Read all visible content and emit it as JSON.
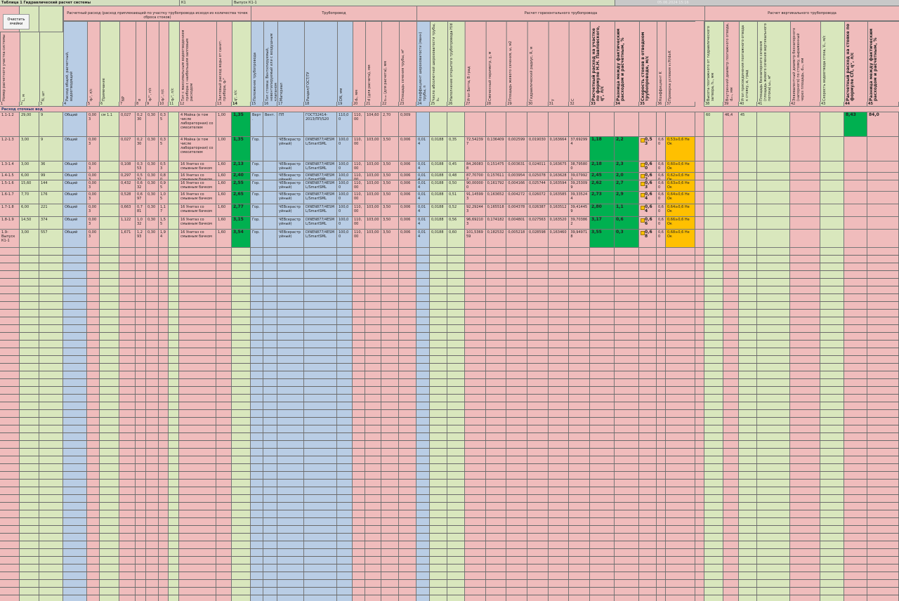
{
  "header": {
    "title": "Таблица 1 Гидравлический расчет системы",
    "system": "К1",
    "outlet": "Выпуск К1-1",
    "date": "05.06.2024 15:16"
  },
  "button": "Очистить ячейки",
  "groups": [
    "Расчетный расход (расход приплекающий по участку трубопровода исходя из количества точек сброса стоков)",
    "Трубопровод",
    "Расчет горизонтального трубопровода",
    "Расчет вертикального трубопровода"
  ],
  "section": "Расход сточных вод",
  "table": {
    "columns": [
      {
        "num": 1,
        "header": "Номер расчетного участка системы"
      },
      {
        "num": 2,
        "header": "L, м"
      },
      {
        "num": 3,
        "header": "N, шт"
      },
      {
        "num": 4,
        "header": "Расход общий, расчетный, водоотводящий"
      },
      {
        "num": 5,
        "header": "q₀ˢ, л/с"
      },
      {
        "num": 6,
        "header": "Примечание"
      },
      {
        "num": 7,
        "header": "NP"
      },
      {
        "num": 8,
        "header": "α"
      },
      {
        "num": 9,
        "header": "q₀ʰʳ, л/с"
      },
      {
        "num": 10,
        "header": "qₕʳ, л/с"
      },
      {
        "num": 11,
        "header": "q₀ˢˡ, л/с"
      },
      {
        "num": 12,
        "header": "Тип с максимальным водоотведением прибора с наибольшим залповым расходом"
      },
      {
        "num": 13,
        "header": "Залповый расход воды от санит. прибора, q₀ˢˡ"
      },
      {
        "num": 14,
        "header": "qˢ, л/с"
      },
      {
        "num": 15,
        "header": "Положение трубопровода"
      },
      {
        "num": 16,
        "header": "Тип стояка: Вентилируемый, невентилируемый или с воздушным клапаном"
      },
      {
        "num": 17,
        "header": "Материал"
      },
      {
        "num": 18,
        "header": "Раздел/ГОСТ/ТУ"
      },
      {
        "num": 19,
        "header": "DN, мм"
      },
      {
        "num": 20,
        "header": "dₙ, мм"
      },
      {
        "num": 21,
        "header": "d (для расчета), мм"
      },
      {
        "num": 22,
        "header": "sₘᵢₙ (для расчета), мм"
      },
      {
        "num": 23,
        "header": "Площадь сечения трубы, м²"
      },
      {
        "num": 24,
        "header": "Коэффициент шероховатости (манн) трубы, n"
      },
      {
        "num": 25,
        "header": "Число абсолютной шероховатости трубы, kₑ"
      },
      {
        "num": 26,
        "header": "Наполнение открытого трубопровода H/d"
      },
      {
        "num": 27,
        "header": "Угол Бетта, В град"
      },
      {
        "num": 28,
        "header": "Смоченный периметр, χ, м"
      },
      {
        "num": 29,
        "header": "Площадь живого сечения, ω, м2"
      },
      {
        "num": 30,
        "header": "Гидравлический радиус, R, м"
      },
      {
        "num": 31,
        "header": "y"
      },
      {
        "num": 32,
        "header": "C"
      },
      {
        "num": 33,
        "header": "Расчетный расход на участке по формуле Н.Н. Павловского, q⁰, л/с"
      },
      {
        "num": 34,
        "header": "Разница между фактическим расходом и расчетным, %"
      },
      {
        "num": 35,
        "header": "Скорость стоков в отводном трубопроводе, м/с"
      },
      {
        "num": 36,
        "header": "Коэффициент K"
      },
      {
        "num": 37,
        "header": "Проверка условия v√H/d≥K"
      },
      {
        "num": 38,
        "header": "Высота поэтажного от гидравлического затвора, hₓ, мм"
      },
      {
        "num": 39,
        "header": "Внутренний диаметр поэтажного отвода, dₒₜᵥ, мм"
      },
      {
        "num": 40,
        "header": "Угол присоединения поэтажного отвода к стояку, α, град"
      },
      {
        "num": 41,
        "header": "Площадь безнапорного сечения (площадь живого сечения вертикального потока) ωₒ, м²"
      },
      {
        "num": 42,
        "header": "Эквивалентный диаметр безнапорного (напорного) по стояку, выраженный через площадь, dₑₙ, мм"
      },
      {
        "num": 43,
        "header": "Скорость водоотвода стока, Vₒ, м/с"
      },
      {
        "num": 44,
        "header": "Расчетный расход на стояке по формуле СП, qᵛ, л/с"
      },
      {
        "num": 45,
        "header": "Разница между фактическим расходом и расчетным, %"
      }
    ],
    "rows": [
      [
        "1.1-1.2",
        "29,00",
        "9",
        "Общий",
        "0,003",
        "см 1.1",
        "0,027",
        "0,230",
        "0,30",
        "0,35",
        null,
        "4 Мойка (в том числе лабораторная) со смесителем",
        "1,00",
        "1,35",
        "Верт.",
        "Вент.",
        "ПП",
        "ГОСТ32414-2013/ПП/S20",
        "110,00",
        "110,00",
        "104,60",
        "2,70",
        "0,009",
        null,
        null,
        null,
        null,
        null,
        null,
        null,
        null,
        null,
        null,
        null,
        null,
        null,
        null,
        "60",
        "46,4",
        "45",
        null,
        null,
        null,
        "8,43",
        "84,0"
      ],
      [
        "1.2-1.3",
        "3,00",
        "9",
        "Общий",
        "0,003",
        null,
        "0,027",
        "0,230",
        "0,30",
        "0,35",
        null,
        "4 Мойка (в том числе лабораторная) со смесителем",
        "1,00",
        "1,35",
        "Гор.",
        null,
        "ЧЕВсераструйный)",
        "DINEN877/4ESML/SmartSML",
        "100,00",
        "110,00",
        "103,00",
        "3,50",
        "0,006",
        "0,014",
        "0,0188",
        "0,35",
        "72,542397",
        "0,136409",
        "0,002599",
        "0,019030",
        "0,163664",
        "37,692994",
        "1,18",
        "2,2",
        "0,53",
        "0,60",
        "0,53≥0,6 Не Ок",
        null,
        null,
        null,
        null,
        null,
        null,
        null,
        null
      ],
      [
        "1.3-1.4",
        "3,00",
        "36",
        "Общий",
        "0,003",
        null,
        "0,108",
        "0,353",
        "0,30",
        "0,53",
        null,
        "16 Унитаз со смывным бачком",
        "1,60",
        "2,13",
        "Гор.",
        null,
        "ЧЕВсераструйный)",
        "DINEN877/4ESML/SmartSML",
        "100,00",
        "110,00",
        "103,00",
        "3,50",
        "0,006",
        "0,014",
        "0,0188",
        "0,45",
        "84,260838",
        "0,151475",
        "0,003631",
        "0,024011",
        "0,163675",
        "38,795800",
        "2,18",
        "2,3",
        "0,60",
        "0,60",
        "0,60≥0,6 Не Ок",
        null,
        null,
        null,
        null,
        null,
        null,
        null,
        null
      ],
      [
        "1.4-1.5",
        "6,00",
        "99",
        "Общий",
        "0,003",
        null,
        "0,297",
        "0,532",
        "0,30",
        "0,80",
        null,
        "16 Унитаз со смывным бачком",
        "1,60",
        "2,40",
        "Гор.",
        null,
        "ЧЕВсераструйный)",
        "DINEN877/4ESML/SmartSML",
        "100,00",
        "110,00",
        "103,00",
        "3,50",
        "0,006",
        "0,014",
        "0,0188",
        "0,48",
        "87,707007",
        "0,157611",
        "0,003954",
        "0,025078",
        "0,163628",
        "39,079922",
        "2,45",
        "2,0",
        "0,62",
        "0,60",
        "0,62≥0,6 Не Ок",
        null,
        null,
        null,
        null,
        null,
        null,
        null,
        null
      ],
      [
        "1.5-1.6",
        "15,60",
        "144",
        "Общий",
        "0,003",
        null,
        "0,432",
        "0,632",
        "0,30",
        "0,95",
        null,
        "16 Унитаз со смывным бачком",
        "1,60",
        "2,55",
        "Гор.",
        null,
        "ЧЕВсераструйный)",
        "DINEN877/4ESML/SmartSML",
        "100,00",
        "110,00",
        "103,00",
        "3,50",
        "0,006",
        "0,014",
        "0,0188",
        "0,50",
        "90,000000",
        "0,161792",
        "0,004166",
        "0,025744",
        "0,163594",
        "39,253099",
        "2,62",
        "2,7",
        "0,63",
        "0,60",
        "0,63≥0,6 Не Ок",
        null,
        null,
        null,
        null,
        null,
        null,
        null,
        null
      ],
      [
        "1.6-1.7",
        "7,70",
        "176",
        "Общий",
        "0,003",
        null,
        "0,528",
        "0,697",
        "0,30",
        "1,05",
        null,
        "16 Унитаз со смывным бачком",
        "1,60",
        "2,65",
        "Гор.",
        null,
        "ЧЕВсераструйный)",
        "DINEN877/4ESML/SmartSML",
        "100,00",
        "110,00",
        "103,00",
        "3,50",
        "0,006",
        "0,014",
        "0,0188",
        "0,51",
        "91,145993",
        "0,163652",
        "0,004272",
        "0,026072",
        "0,163585",
        "39,335244",
        "2,73",
        "2,9",
        "0,64",
        "0,60",
        "0,64≥0,6 Не Ок",
        null,
        null,
        null,
        null,
        null,
        null,
        null,
        null
      ],
      [
        "1.7-1.8",
        "6,00",
        "221",
        "Общий",
        "0,003",
        null,
        "0,663",
        "0,781",
        "0,30",
        "1,17",
        null,
        "16 Унитаз со смывным бачком",
        "1,60",
        "2,77",
        "Гор.",
        null,
        "ЧЕВсераструйный)",
        "DINEN877/4ESML/SmartSML",
        "100,00",
        "110,00",
        "103,00",
        "3,50",
        "0,006",
        "0,014",
        "0,0188",
        "0,52",
        "92,292443",
        "0,165518",
        "0,004378",
        "0,026387",
        "0,163512",
        "39,414459",
        "2,80",
        "1,1",
        "0,64",
        "0,60",
        "0,64≥0,6 Не Ок",
        null,
        null,
        null,
        null,
        null,
        null,
        null,
        null
      ],
      [
        "1.8-1.9",
        "14,50",
        "374",
        "Общий",
        "0,003",
        null,
        "1,122",
        "1,032",
        "0,30",
        "1,55",
        null,
        "16 Унитаз со смывным бачком",
        "1,60",
        "3,15",
        "Гор.",
        null,
        "ЧЕВсераструйный)",
        "DINEN877/4ESML/SmartSML",
        "100,00",
        "110,00",
        "103,00",
        "3,50",
        "0,006",
        "0,014",
        "0,0188",
        "0,56",
        "96,692103",
        "0,174182",
        "0,004801",
        "0,027563",
        "0,163520",
        "39,703862",
        "3,17",
        "0,6",
        "0,66",
        "0,60",
        "0,66≥0,6 Не Ок",
        null,
        null,
        null,
        null,
        null,
        null,
        null,
        null
      ],
      [
        "1.9-Выпуск К1-1",
        "3,00",
        "557",
        "Общий",
        "0,003",
        null,
        "1,671",
        "1,293",
        "0,30",
        "1,94",
        null,
        "16 Унитаз со смывным бачком",
        "1,60",
        "3,54",
        "Гор.",
        null,
        "ЧЕВсераструйный)",
        "DINEN877/4ESML/SmartSML",
        "100,00",
        "110,00",
        "103,00",
        "3,50",
        "0,006",
        "0,014",
        "0,0188",
        "0,60",
        "101,536959",
        "0,182532",
        "0,005218",
        "0,028598",
        "0,163460",
        "39,949718",
        "3,55",
        "0,3",
        "0,68",
        "0,60",
        "0,68≥0,6 Не Ок",
        null,
        null,
        null,
        null,
        null,
        null,
        null,
        null
      ]
    ]
  }
}
